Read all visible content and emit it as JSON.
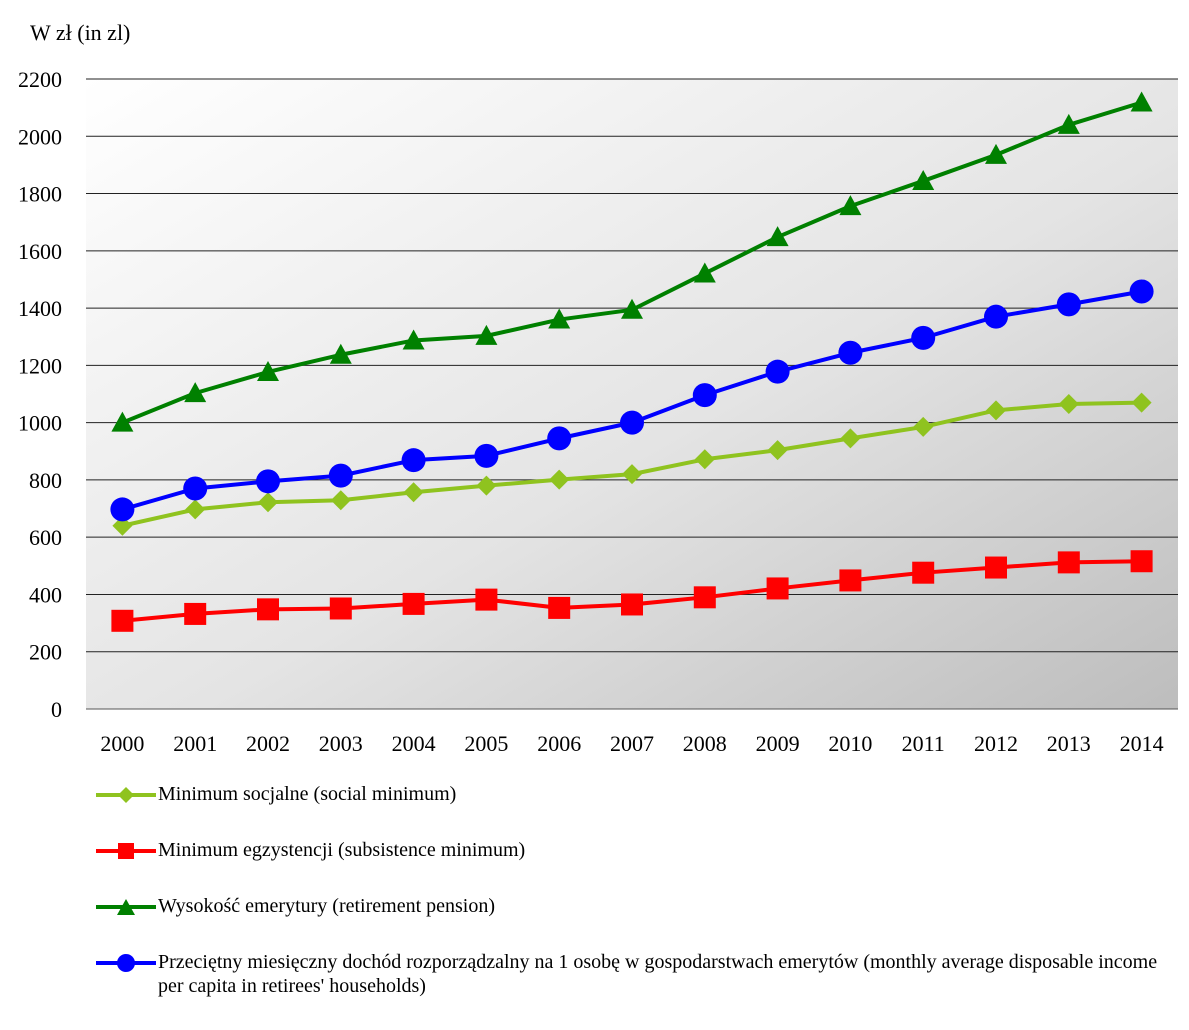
{
  "chart_data": {
    "type": "line",
    "ylabel": "W zł (in zl)",
    "ylim": [
      0,
      2200
    ],
    "yticks": [
      0,
      200,
      400,
      600,
      800,
      1000,
      1200,
      1400,
      1600,
      1800,
      2000,
      2200
    ],
    "categories": [
      "2000",
      "2001",
      "2002",
      "2003",
      "2004",
      "2005",
      "2006",
      "2007",
      "2008",
      "2009",
      "2010",
      "2011",
      "2012",
      "2013",
      "2014"
    ],
    "grid": true,
    "legend_position": "bottom",
    "series": [
      {
        "name": "Minimum socjalne (social minimum)",
        "color": "#8fc31f",
        "marker": "diamond",
        "values": [
          640,
          697,
          722,
          729,
          757,
          780,
          801,
          820,
          872,
          904,
          945,
          985,
          1043,
          1065,
          1070
        ]
      },
      {
        "name": "Minimum egzystencji (subsistence minimum)",
        "color": "#ff0000",
        "marker": "square",
        "values": [
          308,
          332,
          348,
          351,
          367,
          382,
          353,
          365,
          390,
          421,
          449,
          476,
          494,
          512,
          516
        ]
      },
      {
        "name": "Wysokość emerytury (retirement pension)",
        "color": "#008000",
        "marker": "triangle",
        "values": [
          1000,
          1103,
          1177,
          1237,
          1287,
          1303,
          1360,
          1394,
          1521,
          1648,
          1756,
          1844,
          1935,
          2040,
          2118
        ]
      },
      {
        "name": "Przeciętny miesięczny dochód rozporządzalny na 1 osobę w gospodarstwach emerytów (monthly average disposable income per capita in retirees' households)",
        "color": "#0000ff",
        "marker": "circle",
        "values": [
          697,
          770,
          795,
          815,
          869,
          884,
          945,
          1000,
          1096,
          1178,
          1244,
          1296,
          1370,
          1413,
          1458
        ]
      }
    ]
  }
}
